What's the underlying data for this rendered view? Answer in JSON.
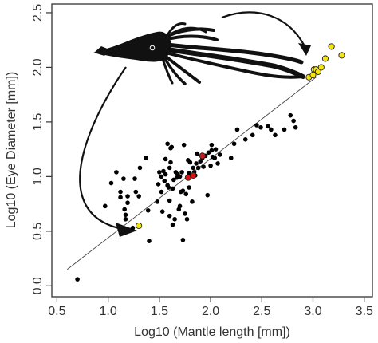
{
  "chart_data": {
    "type": "scatter",
    "title": "",
    "xlabel": "Log10 (Mantle length [mm])",
    "ylabel": "Log10 (Eye Diameter [mm])",
    "xlim": [
      0.45,
      3.58
    ],
    "ylim": [
      -0.1,
      2.58
    ],
    "xticks": [
      "0.5",
      "1.0",
      "1.5",
      "2.0",
      "2.5",
      "3.0",
      "3.5"
    ],
    "yticks": [
      "0.0",
      "0.5",
      "1.0",
      "1.5",
      "2.0",
      "2.5"
    ],
    "grid": false,
    "legend": "none",
    "regression_line": {
      "x": [
        0.6,
        3.03
      ],
      "y": [
        0.15,
        1.91
      ]
    },
    "colors": {
      "black": "#000000",
      "yellow": "#f4e40f",
      "red": "#d91414",
      "line": "#444444"
    },
    "series": [
      {
        "color": "black",
        "points": [
          [
            0.7,
            0.06
          ],
          [
            0.97,
            0.73
          ],
          [
            1.03,
            0.94
          ],
          [
            1.08,
            1.04
          ],
          [
            1.12,
            0.81
          ],
          [
            1.12,
            0.86
          ],
          [
            1.15,
            0.98
          ],
          [
            1.16,
            0.7
          ],
          [
            1.17,
            0.61
          ],
          [
            1.17,
            0.65
          ],
          [
            1.19,
            0.76
          ],
          [
            1.19,
            0.82
          ],
          [
            1.24,
            0.53
          ],
          [
            1.26,
            0.98
          ],
          [
            1.27,
            0.86
          ],
          [
            1.3,
            0.82
          ],
          [
            1.31,
            1.08
          ],
          [
            1.37,
            1.17
          ],
          [
            1.39,
            0.69
          ],
          [
            1.4,
            0.41
          ],
          [
            1.48,
            0.77
          ],
          [
            1.49,
            0.93
          ],
          [
            1.5,
            1.04
          ],
          [
            1.52,
            1.0
          ],
          [
            1.52,
            0.86
          ],
          [
            1.53,
            0.68
          ],
          [
            1.54,
            1.05
          ],
          [
            1.55,
            0.96
          ],
          [
            1.56,
            1.02
          ],
          [
            1.56,
            1.16
          ],
          [
            1.58,
            0.92
          ],
          [
            1.58,
            1.3
          ],
          [
            1.59,
            0.9
          ],
          [
            1.6,
            1.08
          ],
          [
            1.6,
            0.78
          ],
          [
            1.6,
            0.64
          ],
          [
            1.61,
            1.26
          ],
          [
            1.61,
            1.13
          ],
          [
            1.62,
            1.27
          ],
          [
            1.63,
            0.56
          ],
          [
            1.63,
            0.89
          ],
          [
            1.64,
            0.97
          ],
          [
            1.65,
            0.61
          ],
          [
            1.66,
            1.04
          ],
          [
            1.67,
            0.99
          ],
          [
            1.68,
            1.02
          ],
          [
            1.69,
            0.7
          ],
          [
            1.7,
            1.0
          ],
          [
            1.7,
            0.73
          ],
          [
            1.71,
            0.86
          ],
          [
            1.72,
            1.04
          ],
          [
            1.73,
            0.87
          ],
          [
            1.73,
            0.42
          ],
          [
            1.74,
            1.29
          ],
          [
            1.75,
            0.66
          ],
          [
            1.76,
            0.84
          ],
          [
            1.77,
            0.61
          ],
          [
            1.78,
            1.15
          ],
          [
            1.79,
            0.9
          ],
          [
            1.79,
            1.03
          ],
          [
            1.8,
            1.13
          ],
          [
            1.82,
            0.77
          ],
          [
            1.83,
            1.08
          ],
          [
            1.84,
            1.04
          ],
          [
            1.85,
            1.01
          ],
          [
            1.86,
            1.12
          ],
          [
            1.87,
            1.21
          ],
          [
            1.88,
            1.08
          ],
          [
            1.9,
            1.14
          ],
          [
            1.92,
            1.17
          ],
          [
            1.93,
            1.09
          ],
          [
            1.95,
            1.19
          ],
          [
            1.97,
            0.83
          ],
          [
            1.98,
            1.22
          ],
          [
            2.0,
            1.1
          ],
          [
            2.01,
            1.24
          ],
          [
            2.01,
            1.29
          ],
          [
            2.02,
            1.18
          ],
          [
            2.04,
            1.17
          ],
          [
            2.05,
            1.25
          ],
          [
            2.07,
            1.12
          ],
          [
            2.09,
            1.2
          ],
          [
            2.2,
            1.17
          ],
          [
            2.23,
            1.3
          ],
          [
            2.26,
            1.43
          ],
          [
            2.34,
            1.34
          ],
          [
            2.41,
            1.38
          ],
          [
            2.45,
            1.47
          ],
          [
            2.49,
            1.45
          ],
          [
            2.56,
            1.46
          ],
          [
            2.59,
            1.43
          ],
          [
            2.63,
            1.38
          ],
          [
            2.72,
            1.43
          ],
          [
            2.78,
            1.56
          ],
          [
            2.81,
            1.51
          ],
          [
            2.83,
            1.45
          ]
        ]
      },
      {
        "color": "yellow",
        "points": [
          [
            1.3,
            0.55
          ],
          [
            2.96,
            1.91
          ],
          [
            3.0,
            1.93
          ],
          [
            3.01,
            1.98
          ],
          [
            3.03,
            1.98
          ],
          [
            3.05,
            1.96
          ],
          [
            3.08,
            2.0
          ],
          [
            3.12,
            2.08
          ],
          [
            3.18,
            2.19
          ],
          [
            3.28,
            2.11
          ]
        ]
      },
      {
        "color": "red",
        "points": [
          [
            1.78,
            0.99
          ],
          [
            1.83,
            1.01
          ],
          [
            1.92,
            1.19
          ]
        ]
      }
    ]
  }
}
